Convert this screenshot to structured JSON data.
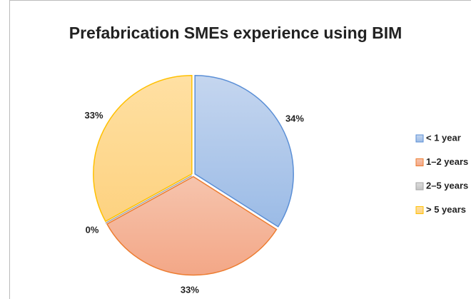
{
  "chart_data": {
    "type": "pie",
    "title": "Prefabrication SMEs experience using BIM",
    "categories": [
      "< 1 year",
      "1–2 years",
      "2–5 years",
      "> 5 years"
    ],
    "values": [
      34,
      33,
      0,
      33
    ],
    "value_labels": [
      "34%",
      "33%",
      "0%",
      "33%"
    ],
    "colors": [
      "#5b8fd6",
      "#ed7d31",
      "#a5a5a5",
      "#ffc000"
    ],
    "legend": "right"
  }
}
